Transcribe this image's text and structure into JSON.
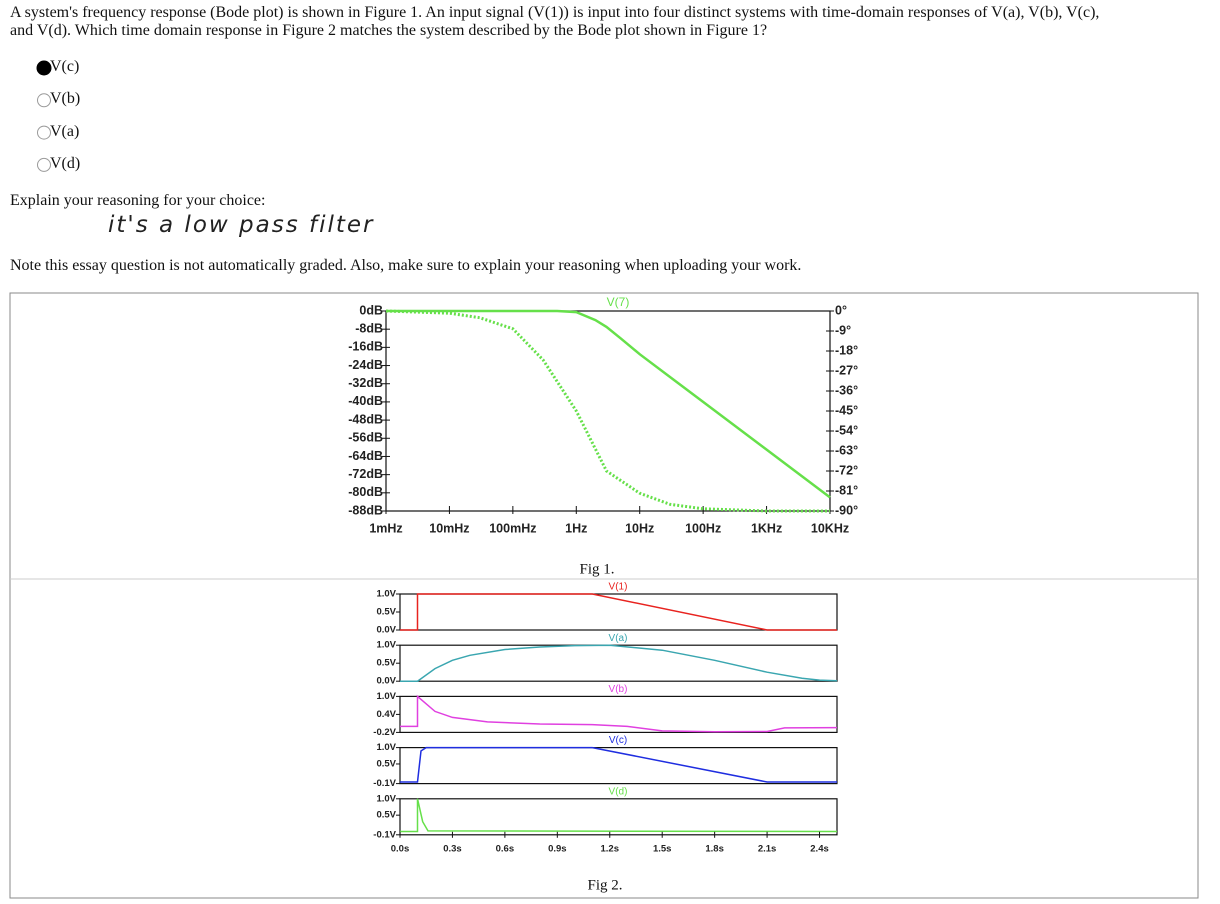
{
  "question": [
    "A system's frequency response (Bode plot) is shown in Figure 1.  An input signal (V(1)) is input into four distinct systems with time-domain responses of V(a), V(b), V(c),",
    "and V(d).  Which time domain response in Figure 2 matches the system described by the Bode plot shown in Figure 1?"
  ],
  "options": [
    {
      "label": "V(c)",
      "selected": true
    },
    {
      "label": "V(b)",
      "selected": false
    },
    {
      "label": "V(a)",
      "selected": false
    },
    {
      "label": "V(d)",
      "selected": false
    }
  ],
  "explain_label": "Explain your reasoning for your choice:",
  "answer": "it's a low pass filter",
  "note": "Note this essay question is not automatically graded. Also, make sure to explain your reasoning when uploading your work.",
  "fig1": {
    "type": "line",
    "trace": "V(7)",
    "trace_color": "#66e04a",
    "caption": "Fig 1.",
    "xscale": "log",
    "xlim": [
      0.001,
      10000
    ],
    "xticks": [
      {
        "value": 0.001,
        "label": "1mHz"
      },
      {
        "value": 0.01,
        "label": "10mHz"
      },
      {
        "value": 0.1,
        "label": "100mHz"
      },
      {
        "value": 1,
        "label": "1Hz"
      },
      {
        "value": 10,
        "label": "10Hz"
      },
      {
        "value": 100,
        "label": "100Hz"
      },
      {
        "value": 1000,
        "label": "1KHz"
      },
      {
        "value": 10000,
        "label": "10KHz"
      }
    ],
    "ylim": [
      -88,
      0
    ],
    "yticks": [
      {
        "value": 0,
        "label": "0dB"
      },
      {
        "value": -8,
        "label": "-8dB"
      },
      {
        "value": -16,
        "label": "-16dB"
      },
      {
        "value": -24,
        "label": "-24dB"
      },
      {
        "value": -32,
        "label": "-32dB"
      },
      {
        "value": -40,
        "label": "-40dB"
      },
      {
        "value": -48,
        "label": "-48dB"
      },
      {
        "value": -56,
        "label": "-56dB"
      },
      {
        "value": -64,
        "label": "-64dB"
      },
      {
        "value": -72,
        "label": "-72dB"
      },
      {
        "value": -80,
        "label": "-80dB"
      },
      {
        "value": -88,
        "label": "-88dB"
      }
    ],
    "y2lim": [
      -90,
      0
    ],
    "y2ticks": [
      {
        "value": 0,
        "label": "0°"
      },
      {
        "value": -9,
        "label": "-9°"
      },
      {
        "value": -18,
        "label": "-18°"
      },
      {
        "value": -27,
        "label": "-27°"
      },
      {
        "value": -36,
        "label": "-36°"
      },
      {
        "value": -45,
        "label": "-45°"
      },
      {
        "value": -54,
        "label": "-54°"
      },
      {
        "value": -63,
        "label": "-63°"
      },
      {
        "value": -72,
        "label": "-72°"
      },
      {
        "value": -81,
        "label": "-81°"
      },
      {
        "value": -90,
        "label": "-90°"
      }
    ],
    "series": [
      {
        "color": "#66e04a",
        "dashed": false,
        "x": [
          0.001,
          0.01,
          0.1,
          0.5,
          1,
          2,
          3,
          5,
          10,
          100,
          1000,
          10000
        ],
        "values": [
          0,
          0,
          0,
          0,
          -0.5,
          -4,
          -7,
          -12,
          -19,
          -40,
          -61,
          -82
        ]
      },
      {
        "color": "#66e04a",
        "dashed": true,
        "axis": "y2",
        "x": [
          0.001,
          0.01,
          0.03,
          0.1,
          0.3,
          1,
          3,
          10,
          30,
          100,
          1000,
          10000
        ],
        "values": [
          0,
          -1,
          -3,
          -8,
          -22,
          -45,
          -72,
          -82,
          -87,
          -89,
          -90,
          -90
        ]
      }
    ]
  },
  "fig2": {
    "type": "line",
    "caption": "Fig 2.",
    "xlim": [
      0,
      2.5
    ],
    "xticks": [
      {
        "value": 0,
        "label": "0.0s"
      },
      {
        "value": 0.3,
        "label": "0.3s"
      },
      {
        "value": 0.6,
        "label": "0.6s"
      },
      {
        "value": 0.9,
        "label": "0.9s"
      },
      {
        "value": 1.2,
        "label": "1.2s"
      },
      {
        "value": 1.5,
        "label": "1.5s"
      },
      {
        "value": 1.8,
        "label": "1.8s"
      },
      {
        "value": 2.1,
        "label": "2.1s"
      },
      {
        "value": 2.4,
        "label": "2.4s"
      }
    ],
    "panels": [
      {
        "name": "V(1)",
        "color": "#e8231f",
        "ylim": [
          0,
          1
        ],
        "yticks": [
          {
            "value": 1,
            "label": "1.0V"
          },
          {
            "value": 0.5,
            "label": "0.5V"
          },
          {
            "value": 0,
            "label": "0.0V"
          }
        ],
        "x": [
          0,
          0.1,
          0.1,
          1.1,
          2.1,
          2.5
        ],
        "values": [
          0,
          0,
          1,
          1,
          0,
          0
        ]
      },
      {
        "name": "V(a)",
        "color": "#3aa6b0",
        "ylim": [
          0,
          1
        ],
        "yticks": [
          {
            "value": 1,
            "label": "1.0V"
          },
          {
            "value": 0.5,
            "label": "0.5V"
          },
          {
            "value": 0,
            "label": "0.0V"
          }
        ],
        "x": [
          0,
          0.1,
          0.2,
          0.3,
          0.4,
          0.6,
          0.8,
          1.0,
          1.2,
          1.5,
          1.8,
          2.1,
          2.3,
          2.4,
          2.5
        ],
        "values": [
          0,
          0,
          0.35,
          0.58,
          0.72,
          0.88,
          0.95,
          0.99,
          1,
          0.86,
          0.58,
          0.25,
          0.08,
          0.03,
          0.01
        ]
      },
      {
        "name": "V(b)",
        "color": "#e040e0",
        "ylim": [
          -0.2,
          1
        ],
        "yticks": [
          {
            "value": 1,
            "label": "1.0V"
          },
          {
            "value": 0.4,
            "label": "0.4V"
          },
          {
            "value": -0.2,
            "label": "-0.2V"
          }
        ],
        "x": [
          0,
          0.1,
          0.1,
          0.2,
          0.3,
          0.5,
          0.8,
          1.1,
          1.3,
          1.5,
          1.8,
          2.1,
          2.2,
          2.5
        ],
        "values": [
          0,
          0,
          1,
          0.5,
          0.3,
          0.15,
          0.08,
          0.06,
          0,
          -0.15,
          -0.18,
          -0.17,
          -0.05,
          -0.04
        ]
      },
      {
        "name": "V(c)",
        "color": "#1f2ee0",
        "ylim": [
          -0.1,
          1
        ],
        "yticks": [
          {
            "value": 1,
            "label": "1.0V"
          },
          {
            "value": 0.5,
            "label": "0.5V"
          },
          {
            "value": -0.1,
            "label": "-0.1V"
          }
        ],
        "x": [
          0,
          0.1,
          0.12,
          0.15,
          1.1,
          2.1,
          2.5
        ],
        "values": [
          -0.05,
          -0.05,
          0.9,
          1,
          1,
          -0.05,
          -0.05
        ]
      },
      {
        "name": "V(d)",
        "color": "#66e04a",
        "ylim": [
          -0.1,
          1
        ],
        "yticks": [
          {
            "value": 1,
            "label": "1.0V"
          },
          {
            "value": 0.5,
            "label": "0.5V"
          },
          {
            "value": -0.1,
            "label": "-0.1V"
          }
        ],
        "x": [
          0,
          0.1,
          0.1,
          0.13,
          0.16,
          2.5
        ],
        "values": [
          0,
          0,
          1,
          0.3,
          0.02,
          0
        ]
      }
    ]
  }
}
